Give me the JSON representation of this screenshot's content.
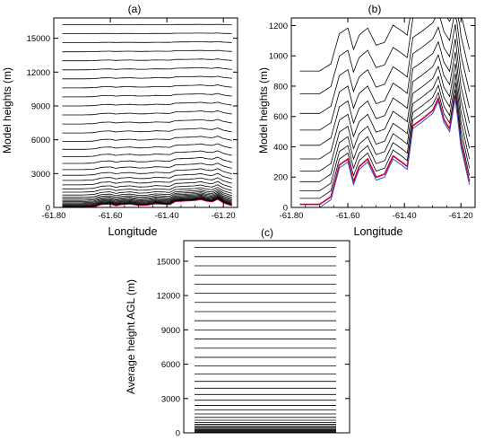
{
  "figure": {
    "panels": [
      {
        "label": "(a)"
      },
      {
        "label": "(b)"
      },
      {
        "label": "(c)"
      }
    ]
  },
  "chart_data": [
    {
      "type": "line",
      "panel_label": "(a)",
      "xlabel": "Longitude",
      "ylabel": "Model heights (m)",
      "xlim": [
        -61.8,
        -61.15
      ],
      "ylim": [
        0,
        16800
      ],
      "xticks": [
        -61.8,
        -61.6,
        -61.4,
        -61.2
      ],
      "xtick_labels": [
        "-61.80",
        "-61.60",
        "-61.40",
        "-61.20"
      ],
      "yticks": [
        0,
        3000,
        6000,
        9000,
        12000,
        15000
      ],
      "ytick_labels": [
        "0",
        "3000",
        "6000",
        "9000",
        "12000",
        "15000"
      ],
      "terrain_profile": {
        "x": [
          -61.76,
          -61.7,
          -61.66,
          -61.63,
          -61.6,
          -61.58,
          -61.56,
          -61.53,
          -61.5,
          -61.47,
          -61.44,
          -61.41,
          -61.39,
          -61.37,
          -61.34,
          -61.3,
          -61.28,
          -61.26,
          -61.24,
          -61.22,
          -61.2,
          -61.17
        ],
        "y": [
          0,
          0,
          50,
          260,
          300,
          150,
          250,
          300,
          180,
          200,
          320,
          280,
          250,
          520,
          560,
          620,
          700,
          560,
          500,
          720,
          400,
          150
        ]
      },
      "level_heights_m": [
        20,
        60,
        110,
        170,
        240,
        320,
        410,
        510,
        620,
        750,
        900,
        1100,
        1350,
        1650,
        2000,
        2400,
        2850,
        3350,
        3900,
        4500,
        5150,
        5850,
        6600,
        7400,
        8200,
        9000,
        9800,
        10600,
        11400,
        12200,
        13000,
        13800,
        14600,
        15400,
        16200
      ],
      "series": [
        {
          "name": "",
          "role": "model levels",
          "color": "#000000"
        },
        {
          "name": "",
          "role": "lowest level",
          "color": "#cc0033"
        }
      ]
    },
    {
      "type": "line",
      "panel_label": "(b)",
      "xlabel": "Longitude",
      "ylabel": "Model heights (m)",
      "xlim": [
        -61.8,
        -61.15
      ],
      "ylim": [
        0,
        1250
      ],
      "xticks": [
        -61.8,
        -61.6,
        -61.4,
        -61.2
      ],
      "xtick_labels": [
        "-61.80",
        "-61.60",
        "-61.40",
        "-61.20"
      ],
      "yticks": [
        0,
        200,
        400,
        600,
        800,
        1000,
        1200
      ],
      "ytick_labels": [
        "0",
        "200",
        "400",
        "600",
        "800",
        "1000",
        "1200"
      ],
      "terrain_profile": {
        "x": [
          -61.76,
          -61.7,
          -61.66,
          -61.63,
          -61.6,
          -61.58,
          -61.56,
          -61.53,
          -61.5,
          -61.47,
          -61.44,
          -61.41,
          -61.39,
          -61.37,
          -61.34,
          -61.3,
          -61.28,
          -61.26,
          -61.24,
          -61.22,
          -61.2,
          -61.17
        ],
        "y": [
          0,
          0,
          50,
          260,
          300,
          150,
          250,
          300,
          180,
          200,
          320,
          280,
          250,
          520,
          560,
          620,
          700,
          560,
          500,
          720,
          400,
          150
        ]
      },
      "level_heights_m": [
        20,
        60,
        110,
        170,
        240,
        320,
        410,
        510,
        620,
        750,
        900
      ],
      "series": [
        {
          "name": "",
          "role": "model levels",
          "color": "#000000"
        },
        {
          "name": "",
          "role": "terrain",
          "color": "#3355cc"
        },
        {
          "name": "",
          "role": "lowest level",
          "color": "#cc0033"
        }
      ]
    },
    {
      "type": "line",
      "panel_label": "(c)",
      "xlabel": "",
      "ylabel": "Average height AGL (m)",
      "ylim": [
        0,
        16800
      ],
      "yticks": [
        0,
        3000,
        6000,
        9000,
        12000,
        15000
      ],
      "ytick_labels": [
        "0",
        "3000",
        "6000",
        "9000",
        "12000",
        "15000"
      ],
      "level_heights_m": [
        20,
        60,
        110,
        170,
        240,
        320,
        410,
        510,
        620,
        750,
        900,
        1100,
        1350,
        1650,
        2000,
        2400,
        2850,
        3350,
        3900,
        4500,
        5150,
        5850,
        6600,
        7400,
        8200,
        9000,
        9800,
        10600,
        11400,
        12200,
        13000,
        13800,
        14600,
        15400,
        16200
      ],
      "series": [
        {
          "name": "",
          "role": "model levels",
          "color": "#000000"
        }
      ]
    }
  ]
}
